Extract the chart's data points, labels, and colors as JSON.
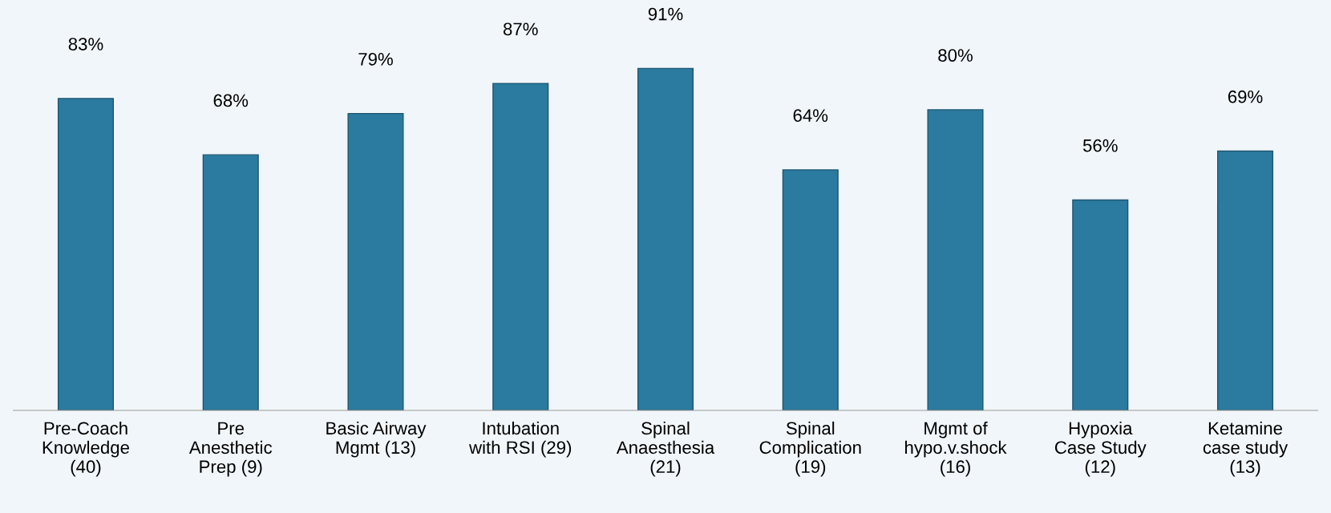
{
  "chart_data": {
    "type": "bar",
    "categories": [
      "Pre-Coach\nKnowledge\n(40)",
      "Pre\nAnesthetic\nPrep (9)",
      "Basic Airway\nMgmt (13)",
      "Intubation\nwith RSI (29)",
      "Spinal\nAnaesthesia\n(21)",
      "Spinal\nComplication\n(19)",
      "Mgmt of\nhypo.v.shock\n(16)",
      "Hypoxia\nCase Study\n(12)",
      "Ketamine\ncase study\n(13)"
    ],
    "values": [
      83,
      68,
      79,
      87,
      91,
      64,
      80,
      56,
      69
    ],
    "value_labels": [
      "83%",
      "68%",
      "79%",
      "87%",
      "91%",
      "64%",
      "80%",
      "56%",
      "69%"
    ],
    "color": "#2b7aa0"
  }
}
